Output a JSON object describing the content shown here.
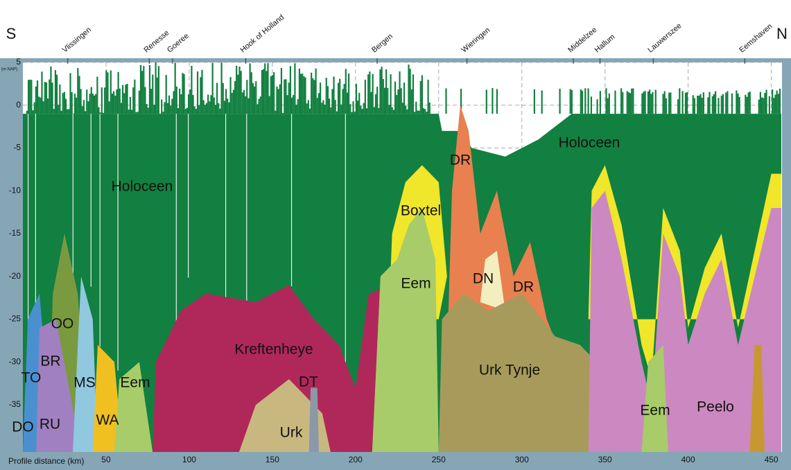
{
  "chart_data": {
    "type": "profile",
    "left_label": "S",
    "right_label": "N",
    "xlabel": "Profile distance (km)",
    "yunit": "(m NAP)",
    "xlim": [
      0,
      456
    ],
    "ylim": [
      -40.5,
      5
    ],
    "xticks": [
      50,
      100,
      150,
      200,
      250,
      300,
      350,
      400,
      450
    ],
    "yticks": [
      5,
      0,
      -5,
      -10,
      -15,
      -20,
      -25,
      -30,
      -35
    ],
    "grid": true,
    "locations": [
      "Vlissingen",
      "Renesse",
      "Goeree",
      "Hook of Holland",
      "Bergen",
      "Wieringen",
      "Middelzee",
      "Hallum",
      "Lauwerszee",
      "Eemshaven"
    ],
    "formation_labels": [
      "Holoceen",
      "Holoceen",
      "Boxtel",
      "Eem",
      "DR",
      "DN",
      "DR",
      "Kreftenheye",
      "DT",
      "Urk",
      "Urk Tynje",
      "Eem",
      "Peelo",
      "OO",
      "BR",
      "TO",
      "MS",
      "Eem",
      "WA",
      "RU",
      "DO"
    ]
  }
}
